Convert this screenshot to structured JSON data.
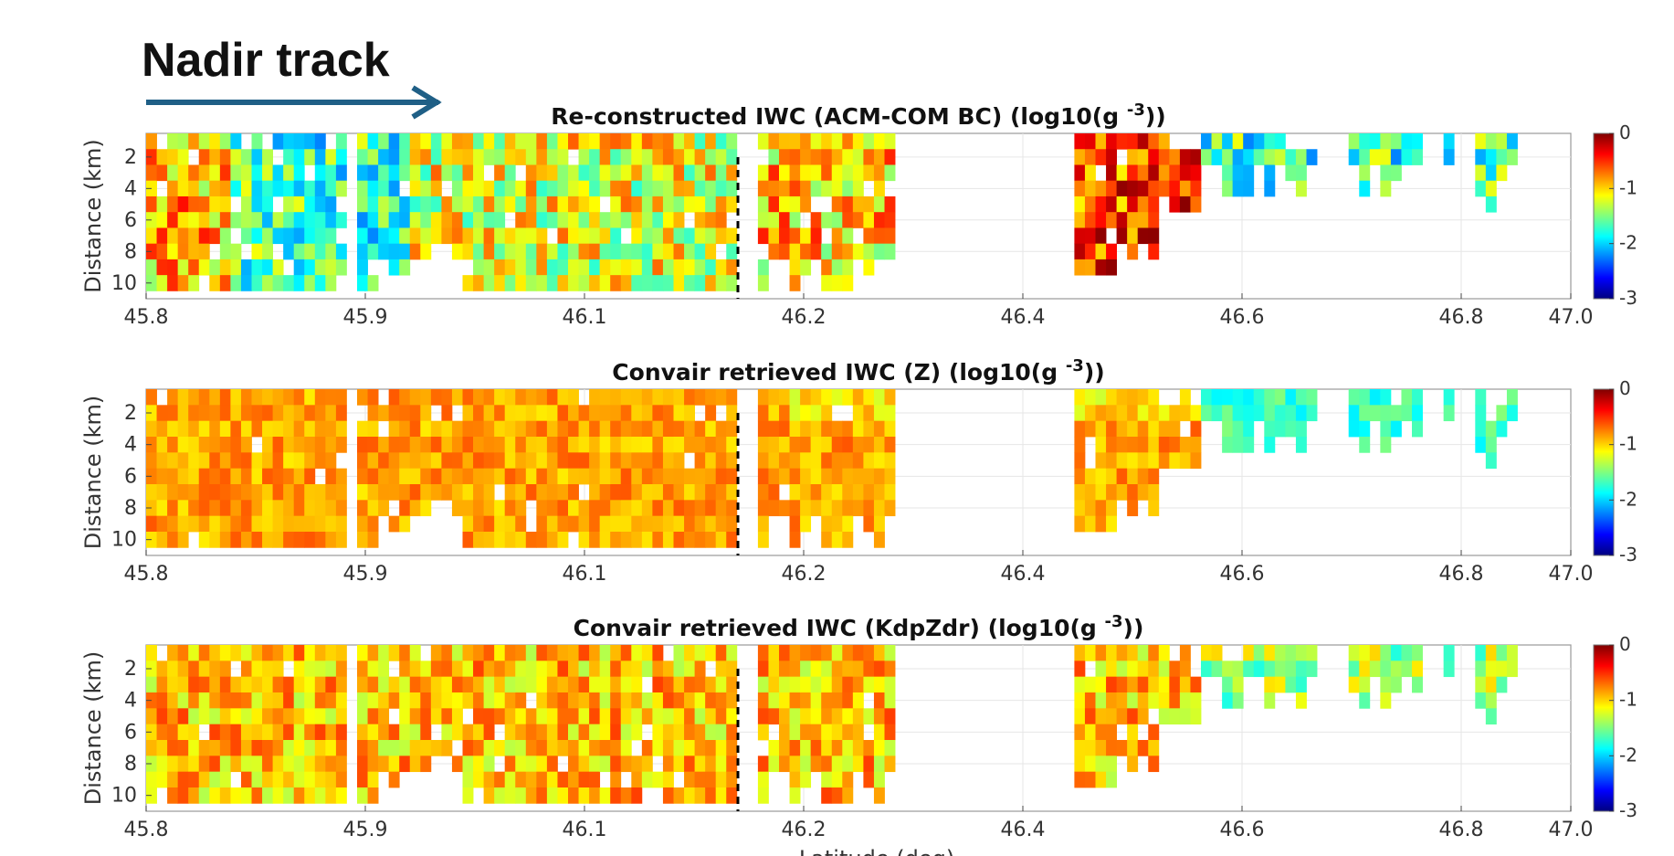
{
  "annotation": {
    "text": "Nadir track",
    "arrow_direction": "right",
    "arrow_color": "#1f5f86"
  },
  "figure": {
    "xlabel": "Latitude (deg)",
    "ylabel": "Distance (km)",
    "colormap": "jet",
    "colormap_stops": [
      "#00007f",
      "#0000ff",
      "#007fff",
      "#00ffff",
      "#7fff7f",
      "#ffff00",
      "#ff7f00",
      "#ff0000",
      "#7f0000"
    ],
    "divider_latitude": 46.17,
    "divider_style": "black dashed vertical line"
  },
  "chart_data": [
    {
      "type": "heatmap",
      "title": "Re-constructed IWC (ACM-COM BC) (log10(g -3))",
      "title_main": "Re-constructed IWC (ACM-COM BC) (log10(g",
      "title_sup": "-3",
      "title_tail": "))",
      "xlabel": "",
      "ylabel": "Distance (km)",
      "x_tick_labels": [
        "45.8",
        "45.9",
        "46.1",
        "46.2",
        "46.4",
        "46.6",
        "46.8",
        "47.0"
      ],
      "y_tick_labels": [
        "2",
        "4",
        "6",
        "8",
        "10"
      ],
      "y_axis_reversed": true,
      "ylim": [
        0.5,
        10.5
      ],
      "colorbar_ticks": [
        "0",
        "-1",
        "-2",
        "-3"
      ],
      "clim": [
        -3,
        0
      ],
      "grid": true,
      "profile": "reconstructed"
    },
    {
      "type": "heatmap",
      "title": "Convair retrieved IWC (Z) (log10(g -3))",
      "title_main": "Convair retrieved IWC (Z) (log10(g",
      "title_sup": "-3",
      "title_tail": "))",
      "xlabel": "",
      "ylabel": "Distance (km)",
      "x_tick_labels": [
        "45.8",
        "45.9",
        "46.1",
        "46.2",
        "46.4",
        "46.6",
        "46.8",
        "47.0"
      ],
      "y_tick_labels": [
        "2",
        "4",
        "6",
        "8",
        "10"
      ],
      "y_axis_reversed": true,
      "ylim": [
        0.5,
        10.5
      ],
      "colorbar_ticks": [
        "0",
        "-1",
        "-2",
        "-3"
      ],
      "clim": [
        -3,
        0
      ],
      "grid": true,
      "profile": "z"
    },
    {
      "type": "heatmap",
      "title": "Convair retrieved IWC (KdpZdr) (log10(g -3))",
      "title_main": "Convair retrieved IWC (KdpZdr) (log10(g",
      "title_sup": "-3",
      "title_tail": "))",
      "xlabel": "Latitude (deg)",
      "ylabel": "Distance (km)",
      "x_tick_labels": [
        "45.8",
        "45.9",
        "46.1",
        "46.2",
        "46.4",
        "46.6",
        "46.8",
        "47.0"
      ],
      "y_tick_labels": [
        "2",
        "4",
        "6",
        "8",
        "10"
      ],
      "y_axis_reversed": true,
      "ylim": [
        0.5,
        10.5
      ],
      "colorbar_ticks": [
        "0",
        "-1",
        "-2",
        "-3"
      ],
      "clim": [
        -3,
        0
      ],
      "grid": true,
      "profile": "kdpzdr"
    }
  ]
}
